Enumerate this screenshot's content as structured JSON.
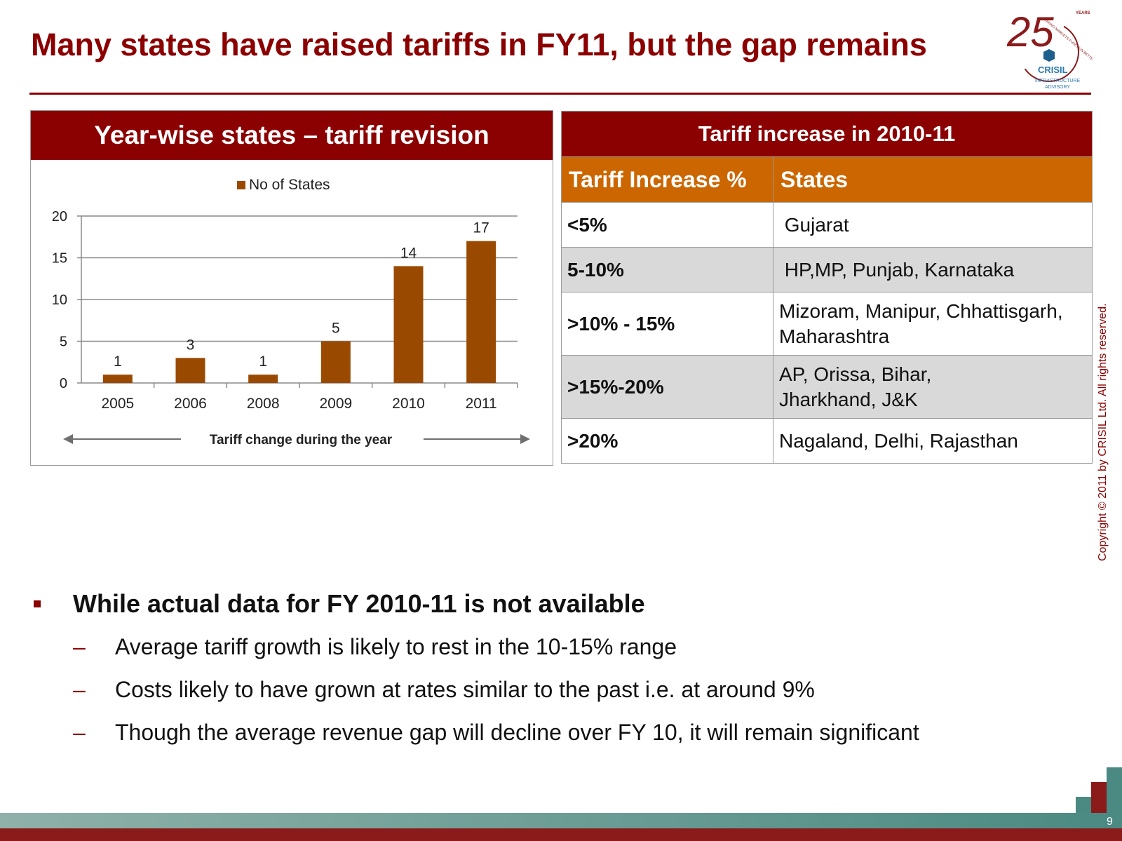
{
  "slide": {
    "title": "Many states have raised tariffs in FY11, but the gap remains",
    "page_number": "9",
    "copyright": "Copyright © 2011 by CRISIL Ltd. All rights reserved."
  },
  "logo": {
    "number": "25",
    "years": "YEARS",
    "tagline": "MAKING MARKETS FUNCTION BETTER",
    "brand": "CRISIL",
    "line1": "INFRASTRUCTURE",
    "line2": "ADVISORY"
  },
  "chart_panel": {
    "header": "Year-wise states – tariff revision",
    "arrow_label": "Tariff change during the year"
  },
  "chart_data": {
    "type": "bar",
    "categories": [
      "2005",
      "2006",
      "2008",
      "2009",
      "2010",
      "2011"
    ],
    "series": [
      {
        "name": "No of States",
        "values": [
          1,
          3,
          1,
          5,
          14,
          17
        ]
      }
    ],
    "ylim": [
      0,
      20
    ],
    "yticks": [
      0,
      5,
      10,
      15,
      20
    ],
    "grid": true,
    "legend_position": "top",
    "data_labels": true,
    "bar_color": "#9A4A00"
  },
  "tariff_table": {
    "title": "Tariff increase in 2010-11",
    "headers": [
      "Tariff Increase %",
      "States"
    ],
    "rows": [
      {
        "range": "<5%",
        "states": " Gujarat"
      },
      {
        "range": "5-10%",
        "states": " HP,MP, Punjab, Karnataka"
      },
      {
        "range": ">10% - 15%",
        "states": "Mizoram, Manipur, Chhattisgarh, Maharashtra"
      },
      {
        "range": ">15%-20%",
        "states": "AP, Orissa, Bihar, Jharkhand, J&K"
      },
      {
        "range": ">20%",
        "states": "Nagaland, Delhi, Rajasthan"
      }
    ]
  },
  "bullets": {
    "main": "While actual data for FY 2010-11 is not available",
    "sub": [
      "Average tariff growth is likely to rest in the 10-15% range",
      "Costs likely to have grown at rates similar to the past i.e. at around 9%",
      "Though the average revenue gap will decline over  FY 10, it will remain significant"
    ]
  },
  "colors": {
    "primary": "#8B0000",
    "accent": "#CC6600",
    "bar": "#9A4A00",
    "row_alt": "#D9D9D9",
    "footer_teal": "#4a8a82"
  }
}
